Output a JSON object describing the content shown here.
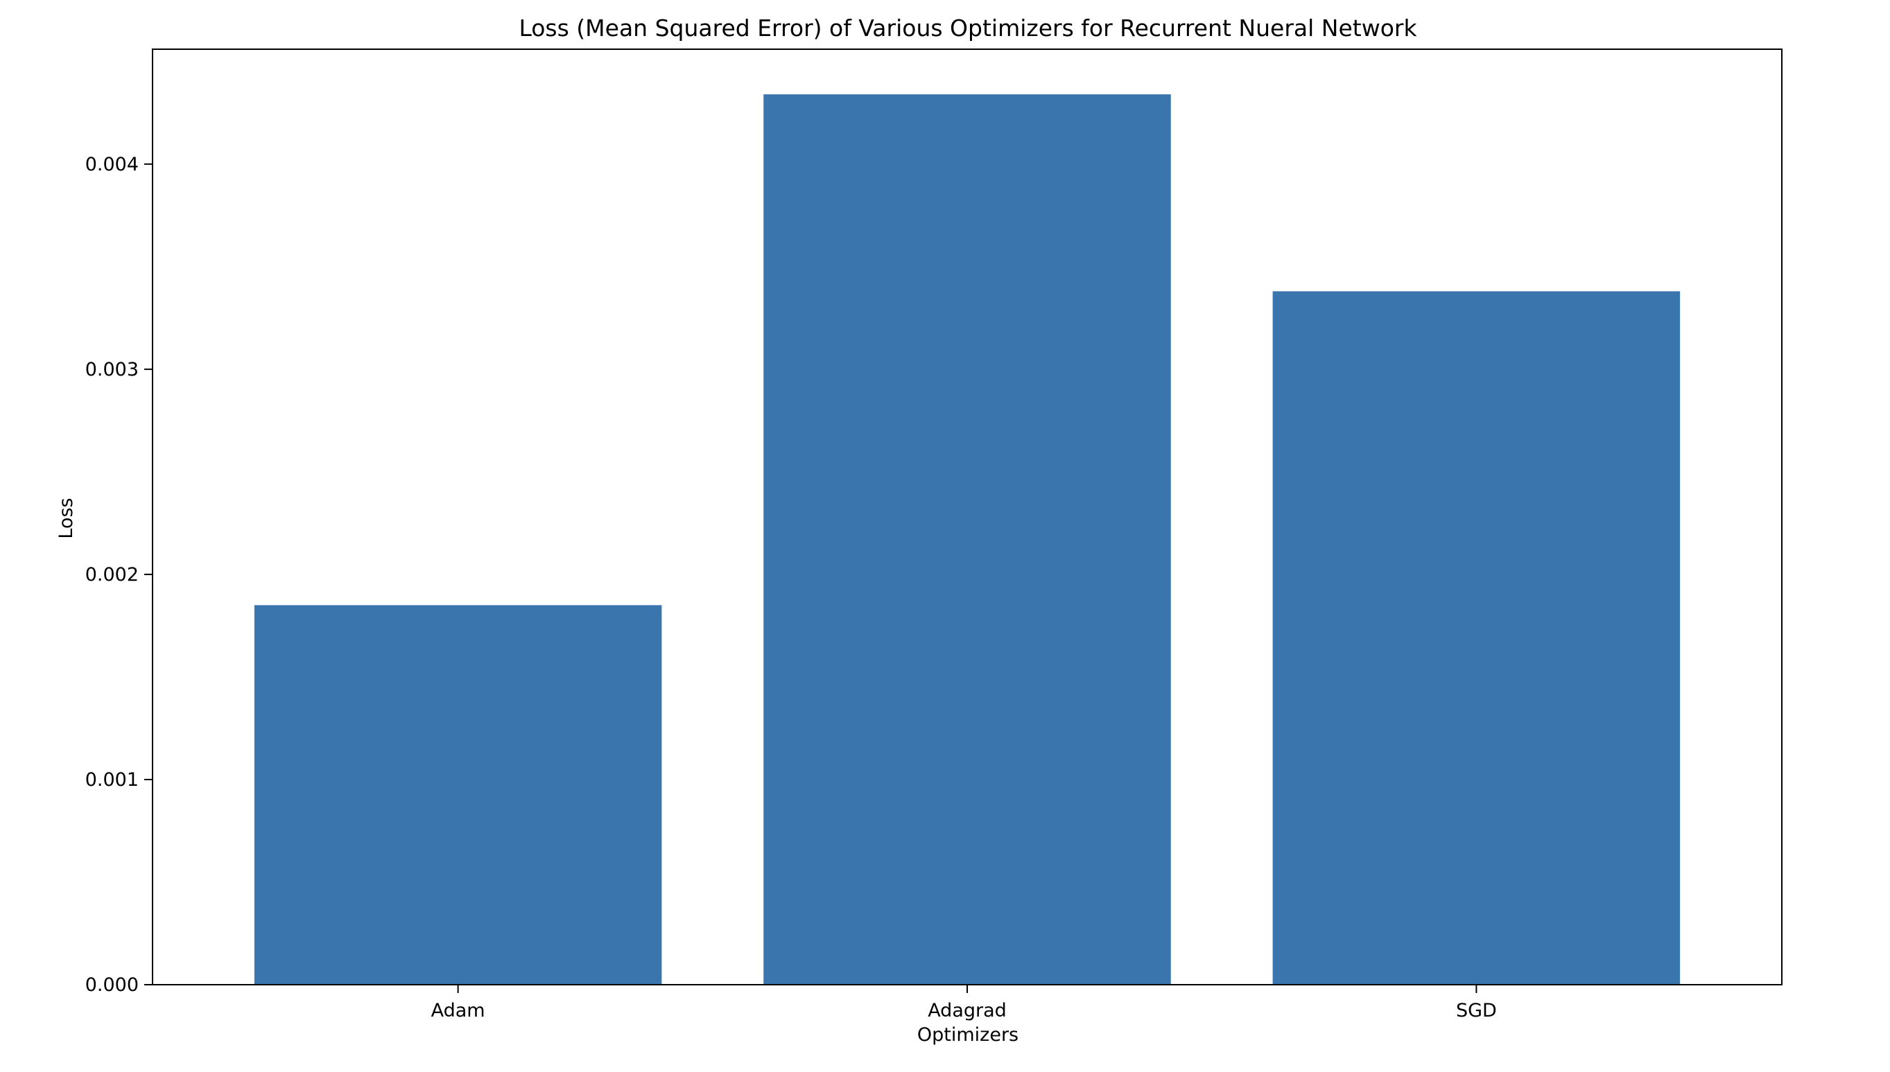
{
  "chart_data": {
    "type": "bar",
    "title": "Loss (Mean Squared Error) of Various Optimizers for Recurrent Nueral Network",
    "xlabel": "Optimizers",
    "ylabel": "Loss",
    "categories": [
      "Adam",
      "Adagrad",
      "SGD"
    ],
    "values": [
      0.00185,
      0.00434,
      0.00338
    ],
    "ylim": [
      0,
      0.00456
    ],
    "yticks": [
      {
        "value": 0.0,
        "label": "0.000"
      },
      {
        "value": 0.001,
        "label": "0.001"
      },
      {
        "value": 0.002,
        "label": "0.002"
      },
      {
        "value": 0.003,
        "label": "0.003"
      },
      {
        "value": 0.004,
        "label": "0.004"
      }
    ],
    "grid": false,
    "legend": "none",
    "bar_color": "#3b75ae",
    "axis_color": "#000000"
  }
}
